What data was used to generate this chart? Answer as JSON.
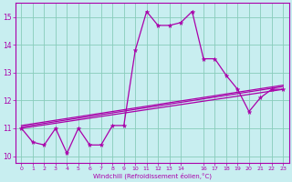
{
  "xlabel": "Windchill (Refroidissement éolien,°C)",
  "background_color": "#c8eef0",
  "grid_color": "#88ccbb",
  "line_color": "#aa00aa",
  "xlim": [
    -0.5,
    23.5
  ],
  "ylim": [
    9.75,
    15.5
  ],
  "xtick_positions": [
    0,
    1,
    2,
    3,
    4,
    5,
    6,
    7,
    8,
    9,
    10,
    11,
    12,
    13,
    14,
    16,
    17,
    18,
    19,
    20,
    21,
    22,
    23
  ],
  "yticks": [
    10,
    11,
    12,
    13,
    14,
    15
  ],
  "hours": [
    0,
    1,
    2,
    3,
    4,
    5,
    6,
    7,
    8,
    9,
    10,
    11,
    12,
    13,
    14,
    15,
    16,
    17,
    18,
    19,
    20,
    21,
    22,
    23
  ],
  "main_series": [
    11.0,
    10.5,
    10.4,
    11.0,
    10.1,
    11.0,
    10.4,
    10.4,
    11.1,
    11.1,
    13.8,
    15.2,
    14.7,
    14.7,
    14.8,
    15.2,
    13.5,
    13.5,
    12.9,
    12.4,
    11.6,
    12.1,
    12.4,
    12.4
  ],
  "trend_start1": 11.0,
  "trend_end1": 12.4,
  "trend_start2": 11.05,
  "trend_end2": 12.5,
  "trend_start3": 11.1,
  "trend_end3": 12.55
}
